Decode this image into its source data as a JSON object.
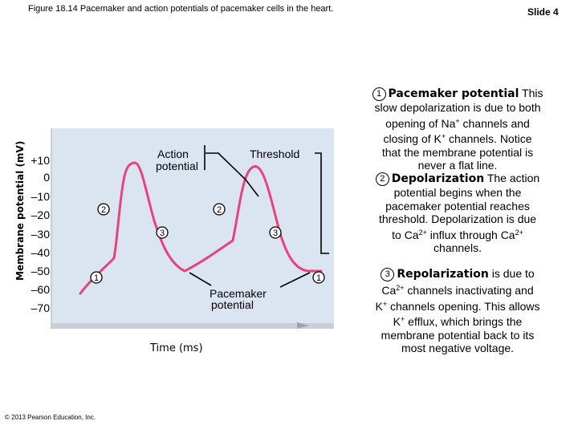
{
  "header": {
    "figure_title": "Figure 18.14 Pacemaker and action potentials of pacemaker cells in the heart.",
    "slide": "Slide 4"
  },
  "footer": {
    "copyright": "© 2013 Pearson Education, Inc."
  },
  "graph": {
    "y_axis_label": "Membrane potential (mV)",
    "x_axis_label": "Time (ms)",
    "y_ticks": [
      "+10",
      "0",
      "–10",
      "–20",
      "–30",
      "–40",
      "–50",
      "–60",
      "–70"
    ],
    "labels": {
      "action_potential_line1": "Action",
      "action_potential_line2": "potential",
      "threshold": "Threshold",
      "pacemaker_line1": "Pacemaker",
      "pacemaker_line2": "potential"
    },
    "phase_markers": [
      "1",
      "2",
      "3",
      "2",
      "3",
      "1"
    ],
    "colors": {
      "background": "#dbe5f1",
      "curve": "#e8447a",
      "axis": "#c9cfd6"
    }
  },
  "descriptions": [
    {
      "number": "1",
      "heading": "Pacemaker potential",
      "lead": "This",
      "lines": [
        "slow depolarization is due to both",
        "opening of Na",
        "channels and",
        "closing of K",
        "channels. Notice",
        "that the membrane potential is",
        "never a flat line."
      ]
    },
    {
      "number": "2",
      "heading": "Depolarization",
      "lead": "The action",
      "lines": [
        "potential begins when the",
        "pacemaker potential reaches",
        "threshold. Depolarization is due",
        "to Ca",
        "influx through Ca",
        "channels."
      ]
    },
    {
      "number": "3",
      "heading": "Repolarization",
      "lead": "is due to",
      "lines": [
        "Ca",
        "channels inactivating and",
        "K",
        "channels opening. This allows",
        "K",
        "efflux, which brings the",
        "membrane potential back to its",
        "most negative voltage."
      ]
    }
  ],
  "ions": {
    "plus": "+",
    "two_plus": "2+"
  }
}
